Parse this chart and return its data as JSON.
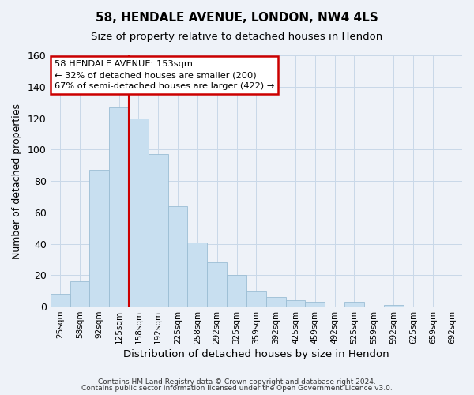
{
  "title": "58, HENDALE AVENUE, LONDON, NW4 4LS",
  "subtitle": "Size of property relative to detached houses in Hendon",
  "xlabel": "Distribution of detached houses by size in Hendon",
  "ylabel": "Number of detached properties",
  "bar_labels": [
    "25sqm",
    "58sqm",
    "92sqm",
    "125sqm",
    "158sqm",
    "192sqm",
    "225sqm",
    "258sqm",
    "292sqm",
    "325sqm",
    "359sqm",
    "392sqm",
    "425sqm",
    "459sqm",
    "492sqm",
    "525sqm",
    "559sqm",
    "592sqm",
    "625sqm",
    "659sqm",
    "692sqm"
  ],
  "bar_values": [
    8,
    16,
    87,
    127,
    120,
    97,
    64,
    41,
    28,
    20,
    10,
    6,
    4,
    3,
    0,
    3,
    0,
    1,
    0,
    0,
    0
  ],
  "bar_color": "#c8dff0",
  "bar_edge_color": "#9bbdd4",
  "vline_color": "#cc0000",
  "ylim": [
    0,
    160
  ],
  "yticks": [
    0,
    20,
    40,
    60,
    80,
    100,
    120,
    140,
    160
  ],
  "annotation_title": "58 HENDALE AVENUE: 153sqm",
  "annotation_line1": "← 32% of detached houses are smaller (200)",
  "annotation_line2": "67% of semi-detached houses are larger (422) →",
  "annotation_box_color": "#ffffff",
  "annotation_box_edge": "#cc0000",
  "footer1": "Contains HM Land Registry data © Crown copyright and database right 2024.",
  "footer2": "Contains public sector information licensed under the Open Government Licence v3.0.",
  "grid_color": "#c8d8e8",
  "background_color": "#eef2f8",
  "plot_bg_color": "#eef2f8"
}
